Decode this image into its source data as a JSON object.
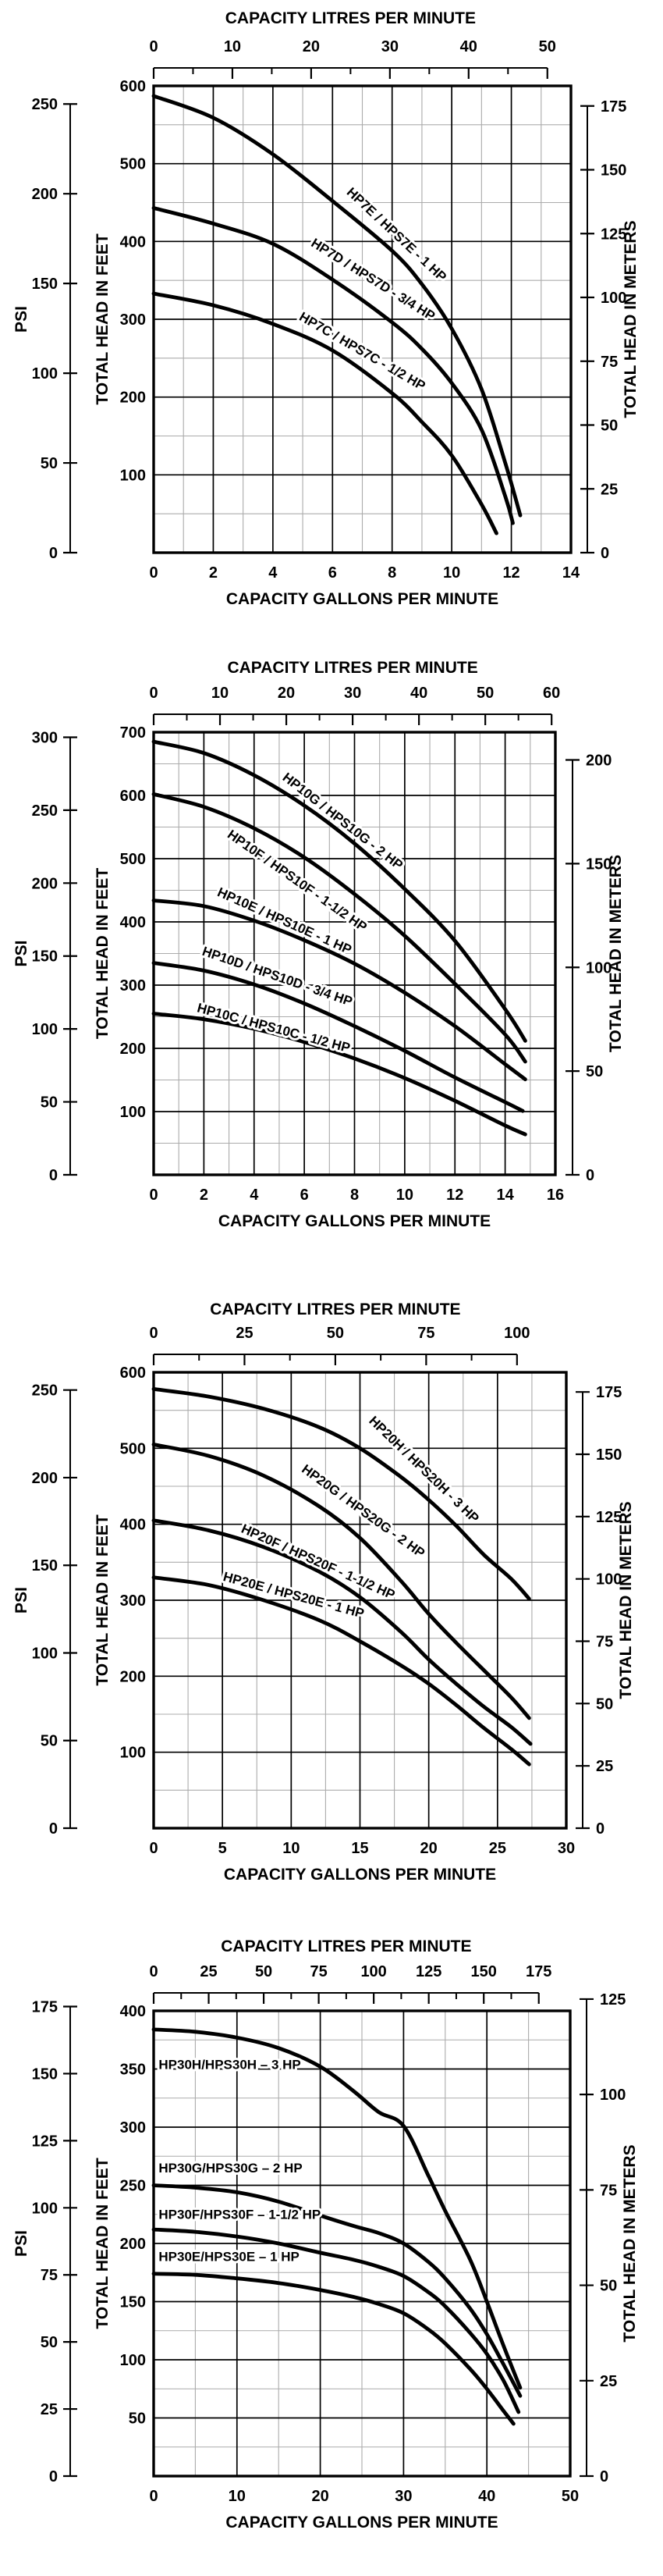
{
  "page": {
    "background": "#ffffff",
    "ink_color": "#000000",
    "minor_grid_color": "#ababab"
  },
  "chart_data": [
    {
      "type": "line",
      "id": "hp7-series",
      "title_top": "CAPACITY LITRES PER MINUTE",
      "title_bottom": "CAPACITY GALLONS PER MINUTE",
      "top_axis": {
        "unit": "LPM",
        "major_ticks": [
          0,
          10,
          20,
          30,
          40,
          50
        ],
        "minor_step": 5
      },
      "bottom_axis": {
        "unit": "GPM",
        "max_gpm": 14,
        "labels": [
          0,
          2,
          4,
          6,
          8,
          10,
          12,
          14
        ],
        "minor_step": 1
      },
      "psi_axis": {
        "title": "PSI",
        "labels": [
          250,
          200,
          150,
          100,
          50,
          0
        ]
      },
      "feet_axis": {
        "title": "TOTAL HEAD IN FEET",
        "max_ft": 600,
        "labels": [
          600,
          500,
          400,
          300,
          200,
          100
        ],
        "minor_step": 50
      },
      "meters_axis": {
        "title": "TOTAL HEAD IN METERS",
        "labels": [
          175,
          150,
          125,
          100,
          75,
          50,
          25,
          0
        ]
      },
      "series": [
        {
          "name": "HP7E / HPS7E - 1 HP",
          "points": [
            [
              0,
              587
            ],
            [
              2,
              559
            ],
            [
              4,
              512
            ],
            [
              6,
              452
            ],
            [
              8,
              388
            ],
            [
              9,
              345
            ],
            [
              10,
              288
            ],
            [
              11,
              210
            ],
            [
              11.8,
              115
            ],
            [
              12.3,
              48
            ]
          ],
          "label": {
            "gpm": 6.45,
            "ft": 462,
            "angle": 43
          }
        },
        {
          "name": "HP7D / HPS7D - 3/4 HP",
          "points": [
            [
              0,
              443
            ],
            [
              2,
              423
            ],
            [
              4,
              397
            ],
            [
              6,
              351
            ],
            [
              8,
              296
            ],
            [
              9,
              262
            ],
            [
              10,
              218
            ],
            [
              11,
              158
            ],
            [
              11.8,
              72
            ],
            [
              12.05,
              38
            ]
          ],
          "label": {
            "gpm": 5.25,
            "ft": 395,
            "angle": 32
          }
        },
        {
          "name": "HP7C / HPS7C - 1/2 HP",
          "points": [
            [
              0,
              333
            ],
            [
              2,
              318
            ],
            [
              4,
              294
            ],
            [
              6,
              260
            ],
            [
              8,
              205
            ],
            [
              9,
              168
            ],
            [
              10,
              125
            ],
            [
              11,
              62
            ],
            [
              11.5,
              25
            ]
          ],
          "label": {
            "gpm": 4.85,
            "ft": 300,
            "angle": 30
          }
        }
      ]
    },
    {
      "type": "line",
      "id": "hp10-series",
      "title_top": "CAPACITY LITRES PER MINUTE",
      "title_bottom": "CAPACITY GALLONS PER MINUTE",
      "top_axis": {
        "unit": "LPM",
        "major_ticks": [
          0,
          10,
          20,
          30,
          40,
          50,
          60
        ],
        "minor_step": 5
      },
      "bottom_axis": {
        "unit": "GPM",
        "max_gpm": 16,
        "labels": [
          0,
          2,
          4,
          6,
          8,
          10,
          12,
          14,
          16
        ],
        "minor_step": 1
      },
      "psi_axis": {
        "title": "PSI",
        "labels": [
          300,
          250,
          200,
          150,
          100,
          50,
          0
        ]
      },
      "feet_axis": {
        "title": "TOTAL HEAD IN FEET",
        "max_ft": 700,
        "labels": [
          700,
          600,
          500,
          400,
          300,
          200,
          100
        ],
        "minor_step": 50
      },
      "meters_axis": {
        "title": "TOTAL HEAD IN METERS",
        "labels": [
          200,
          150,
          100,
          50,
          0
        ]
      },
      "series": [
        {
          "name": "HP10G / HPS10G - 2 HP",
          "points": [
            [
              0,
              685
            ],
            [
              2,
              667
            ],
            [
              4,
              632
            ],
            [
              6,
              584
            ],
            [
              8,
              524
            ],
            [
              10,
              452
            ],
            [
              12,
              370
            ],
            [
              14,
              262
            ],
            [
              14.8,
              212
            ]
          ],
          "label": {
            "gpm": 5.1,
            "ft": 626,
            "angle": 38
          }
        },
        {
          "name": "HP10F / HPS10F - 1-1/2 HP",
          "points": [
            [
              0,
              602
            ],
            [
              2,
              582
            ],
            [
              4,
              548
            ],
            [
              6,
              502
            ],
            [
              8,
              444
            ],
            [
              10,
              378
            ],
            [
              12,
              302
            ],
            [
              14,
              222
            ],
            [
              14.8,
              179
            ]
          ],
          "label": {
            "gpm": 2.9,
            "ft": 535,
            "angle": 35
          }
        },
        {
          "name": "HP10E / HPS10E - 1 HP",
          "points": [
            [
              0,
              434
            ],
            [
              2,
              425
            ],
            [
              4,
              402
            ],
            [
              6,
              371
            ],
            [
              8,
              334
            ],
            [
              10,
              288
            ],
            [
              12,
              235
            ],
            [
              14,
              175
            ],
            [
              14.8,
              151
            ]
          ],
          "label": {
            "gpm": 2.5,
            "ft": 442,
            "angle": 24
          }
        },
        {
          "name": "HP10D / HPS10D - 3/4 HP",
          "points": [
            [
              0,
              335
            ],
            [
              2,
              323
            ],
            [
              4,
              301
            ],
            [
              6,
              271
            ],
            [
              8,
              235
            ],
            [
              10,
              196
            ],
            [
              12,
              154
            ],
            [
              14,
              115
            ],
            [
              14.7,
              101
            ]
          ],
          "label": {
            "gpm": 1.9,
            "ft": 348,
            "angle": 19
          }
        },
        {
          "name": "HP10C / HPS10C - 1/2 HP",
          "points": [
            [
              0,
              255
            ],
            [
              2,
              246
            ],
            [
              4,
              231
            ],
            [
              6,
              210
            ],
            [
              8,
              184
            ],
            [
              10,
              153
            ],
            [
              12,
              117
            ],
            [
              14,
              78
            ],
            [
              14.8,
              64
            ]
          ],
          "label": {
            "gpm": 1.7,
            "ft": 258,
            "angle": 15
          }
        }
      ]
    },
    {
      "type": "line",
      "id": "hp20-series",
      "title_top": "CAPACITY LITRES PER MINUTE",
      "title_bottom": "CAPACITY GALLONS PER MINUTE",
      "top_axis": {
        "unit": "LPM",
        "major_ticks": [
          0,
          25,
          50,
          75,
          100
        ],
        "minor_step": 12.5
      },
      "bottom_axis": {
        "unit": "GPM",
        "max_gpm": 30,
        "labels": [
          0,
          5,
          10,
          15,
          20,
          25,
          30
        ],
        "minor_step": 2.5
      },
      "psi_axis": {
        "title": "PSI",
        "labels": [
          250,
          200,
          150,
          100,
          50,
          0
        ]
      },
      "feet_axis": {
        "title": "TOTAL HEAD IN FEET",
        "max_ft": 600,
        "labels": [
          600,
          500,
          400,
          300,
          200,
          100
        ],
        "minor_step": 50
      },
      "meters_axis": {
        "title": "TOTAL HEAD IN METERS",
        "labels": [
          175,
          150,
          125,
          100,
          75,
          50,
          25,
          0
        ]
      },
      "series": [
        {
          "name": "HP20H / HPS20H - 3 HP",
          "points": [
            [
              0,
              578
            ],
            [
              4,
              568
            ],
            [
              8,
              552
            ],
            [
              12,
              528
            ],
            [
              15,
              500
            ],
            [
              18,
              462
            ],
            [
              20,
              432
            ],
            [
              22,
              398
            ],
            [
              24,
              360
            ],
            [
              26,
              328
            ],
            [
              27.3,
              302
            ]
          ],
          "label": {
            "gpm": 15.6,
            "ft": 535,
            "angle": 44
          }
        },
        {
          "name": "HP20G / HPS20G - 2 HP",
          "points": [
            [
              0,
              505
            ],
            [
              4,
              490
            ],
            [
              8,
              464
            ],
            [
              12,
              424
            ],
            [
              15,
              382
            ],
            [
              18,
              325
            ],
            [
              20,
              282
            ],
            [
              22,
              244
            ],
            [
              24,
              208
            ],
            [
              26,
              172
            ],
            [
              27.3,
              145
            ]
          ],
          "label": {
            "gpm": 10.7,
            "ft": 470,
            "angle": 36
          }
        },
        {
          "name": "HP20F / HPS20F - 1-1/2 HP",
          "points": [
            [
              0,
              405
            ],
            [
              4,
              392
            ],
            [
              8,
              370
            ],
            [
              12,
              338
            ],
            [
              15,
              304
            ],
            [
              18,
              258
            ],
            [
              20,
              222
            ],
            [
              22,
              190
            ],
            [
              24,
              160
            ],
            [
              26,
              133
            ],
            [
              27.4,
              111
            ]
          ],
          "label": {
            "gpm": 6.3,
            "ft": 390,
            "angle": 24
          }
        },
        {
          "name": "HP20E / HPS20E - 1 HP",
          "points": [
            [
              0,
              330
            ],
            [
              4,
              320
            ],
            [
              8,
              300
            ],
            [
              12,
              274
            ],
            [
              15,
              246
            ],
            [
              18,
              214
            ],
            [
              20,
              190
            ],
            [
              22,
              162
            ],
            [
              24,
              132
            ],
            [
              26,
              104
            ],
            [
              27.3,
              84
            ]
          ],
          "label": {
            "gpm": 5.0,
            "ft": 326,
            "angle": 15
          }
        }
      ]
    },
    {
      "type": "line",
      "id": "hp30-series",
      "title_top": "CAPACITY LITRES PER MINUTE",
      "title_bottom": "CAPACITY GALLONS PER MINUTE",
      "top_axis": {
        "unit": "LPM",
        "major_ticks": [
          0,
          25,
          50,
          75,
          100,
          125,
          150,
          175
        ],
        "minor_step": 12.5
      },
      "bottom_axis": {
        "unit": "GPM",
        "max_gpm": 50,
        "labels": [
          0,
          10,
          20,
          30,
          40,
          50
        ],
        "minor_step": 5
      },
      "psi_axis": {
        "title": "PSI",
        "labels": [
          175,
          150,
          125,
          100,
          75,
          50,
          25,
          0
        ]
      },
      "feet_axis": {
        "title": "TOTAL HEAD IN FEET",
        "max_ft": 400,
        "labels": [
          400,
          350,
          300,
          250,
          200,
          150,
          100,
          50
        ],
        "minor_step": 25
      },
      "meters_axis": {
        "title": "TOTAL HEAD IN METERS",
        "labels": [
          125,
          100,
          75,
          50,
          25,
          0
        ]
      },
      "series": [
        {
          "name": "HP30H/HPS30H – 3 HP",
          "points": [
            [
              0,
              384
            ],
            [
              5,
              382
            ],
            [
              10,
              377
            ],
            [
              15,
              368
            ],
            [
              20,
              352
            ],
            [
              24,
              331
            ],
            [
              27,
              313
            ],
            [
              30,
              301
            ],
            [
              33,
              258
            ],
            [
              35,
              228
            ],
            [
              38,
              186
            ],
            [
              40,
              150
            ],
            [
              42,
              112
            ],
            [
              44,
              76
            ]
          ],
          "label": {
            "gpm": 0.6,
            "ft": 350,
            "angle": 0
          }
        },
        {
          "name": "HP30G/HPS30G – 2 HP",
          "points": [
            [
              0,
              250
            ],
            [
              5,
              248
            ],
            [
              10,
              244
            ],
            [
              15,
              236
            ],
            [
              20,
              224
            ],
            [
              24,
              215
            ],
            [
              27,
              209
            ],
            [
              30,
              200
            ],
            [
              33,
              184
            ],
            [
              35,
              170
            ],
            [
              38,
              144
            ],
            [
              40,
              122
            ],
            [
              42,
              96
            ],
            [
              44,
              69
            ]
          ],
          "label": {
            "gpm": 0.6,
            "ft": 261,
            "angle": 0
          }
        },
        {
          "name": "HP30F/HPS30F – 1-1/2 HP",
          "points": [
            [
              0,
              212
            ],
            [
              5,
              210
            ],
            [
              10,
              206
            ],
            [
              15,
              200
            ],
            [
              20,
              192
            ],
            [
              24,
              186
            ],
            [
              27,
              180
            ],
            [
              30,
              172
            ],
            [
              33,
              158
            ],
            [
              35,
              146
            ],
            [
              38,
              123
            ],
            [
              40,
              105
            ],
            [
              42,
              82
            ],
            [
              43.8,
              55
            ]
          ],
          "label": {
            "gpm": 0.6,
            "ft": 221,
            "angle": 0
          }
        },
        {
          "name": "HP30E/HPS30E – 1 HP",
          "points": [
            [
              0,
              174
            ],
            [
              5,
              173
            ],
            [
              10,
              170
            ],
            [
              15,
              166
            ],
            [
              20,
              160
            ],
            [
              24,
              154
            ],
            [
              27,
              148
            ],
            [
              30,
              140
            ],
            [
              33,
              126
            ],
            [
              35,
              114
            ],
            [
              38,
              92
            ],
            [
              40,
              75
            ],
            [
              42,
              56
            ],
            [
              43.2,
              45
            ]
          ],
          "label": {
            "gpm": 0.6,
            "ft": 185,
            "angle": 0
          }
        }
      ]
    }
  ]
}
